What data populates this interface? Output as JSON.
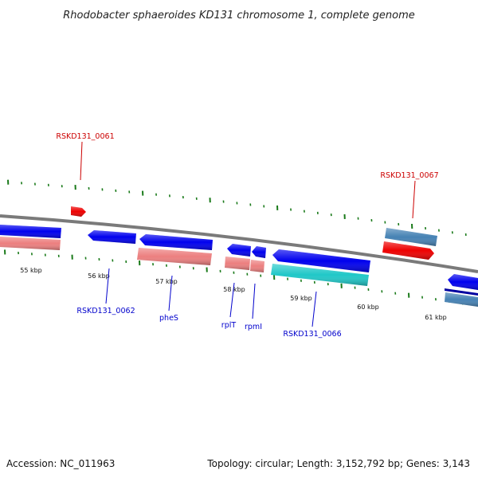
{
  "title": "Rhodobacter sphaeroides KD131 chromosome 1, complete genome",
  "footer": {
    "accession": "Accession: NC_011963",
    "summary": "Topology: circular; Length: 3,152,792 bp; Genes: 3,143"
  },
  "colors": {
    "backbone": "#808080",
    "tick": "#1a7a1a",
    "cds_strand_label": "#0000cc",
    "rna_label": "#cc0000"
  },
  "ticks": [
    {
      "label": "55 kbp"
    },
    {
      "label": "56 kbp"
    },
    {
      "label": "57 kbp"
    },
    {
      "label": "58 kbp"
    },
    {
      "label": "59 kbp"
    },
    {
      "label": "60 kbp"
    },
    {
      "label": "61 kbp"
    }
  ],
  "features": [
    {
      "type": "tRNA",
      "strand": "+",
      "color": "#ee0000"
    },
    {
      "type": "CDS",
      "strand": "-",
      "color": "#0000ee"
    },
    {
      "type": "gene",
      "strand": "-",
      "color": "#ec7f7f"
    },
    {
      "type": "CDS",
      "strand": "-",
      "color": "#0000ee"
    },
    {
      "type": "CDS",
      "strand": "-",
      "color": "#0000ee"
    },
    {
      "type": "gene",
      "strand": "-",
      "color": "#ec7f7f"
    },
    {
      "type": "CDS",
      "strand": "-",
      "color": "#0000ee"
    },
    {
      "type": "gene",
      "strand": "-",
      "color": "#ec7f7f"
    },
    {
      "type": "CDS",
      "strand": "-",
      "color": "#0000ee"
    },
    {
      "type": "gene",
      "strand": "-",
      "color": "#ec7f7f"
    },
    {
      "type": "CDS",
      "strand": "-",
      "color": "#0000ee"
    },
    {
      "type": "gene",
      "strand": "-",
      "color": "#20c8c8"
    },
    {
      "type": "misc",
      "strand": "+",
      "color": "#4682b4"
    },
    {
      "type": "rRNA",
      "strand": "+",
      "color": "#ee0000"
    },
    {
      "type": "CDS",
      "strand": "-",
      "color": "#0000ee"
    },
    {
      "type": "misc",
      "strand": "-",
      "color": "#4682b4"
    }
  ],
  "labels": [
    {
      "text": "RSKD131_0061",
      "color": "#cc0000"
    },
    {
      "text": "RSKD131_0067",
      "color": "#cc0000"
    },
    {
      "text": "RSKD131_0062",
      "color": "#0000cc"
    },
    {
      "text": "pheS",
      "color": "#0000cc"
    },
    {
      "text": "rplT",
      "color": "#0000cc"
    },
    {
      "text": "rpmI",
      "color": "#0000cc"
    },
    {
      "text": "RSKD131_0066",
      "color": "#0000cc"
    }
  ]
}
